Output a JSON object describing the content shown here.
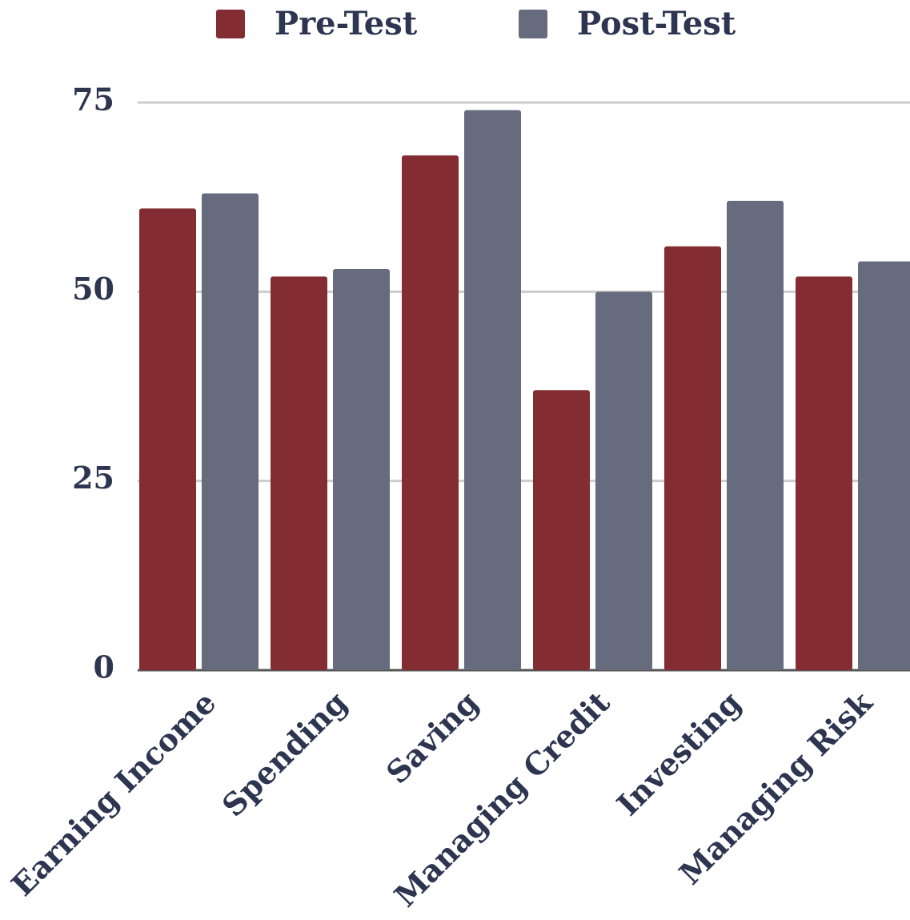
{
  "chart_data": {
    "type": "bar",
    "categories": [
      "Earning Income",
      "Spending",
      "Saving",
      "Managing Credit",
      "Investing",
      "Managing Risk"
    ],
    "series": [
      {
        "name": "Pre-Test",
        "color": "#832d32",
        "values": [
          61,
          52,
          68,
          37,
          56,
          52
        ]
      },
      {
        "name": "Post-Test",
        "color": "#666b7d",
        "values": [
          63,
          53,
          74,
          50,
          62,
          54
        ]
      }
    ],
    "ylim": [
      0,
      75
    ],
    "yticks": [
      0,
      25,
      50,
      75
    ],
    "grid": true,
    "legend": "top"
  }
}
